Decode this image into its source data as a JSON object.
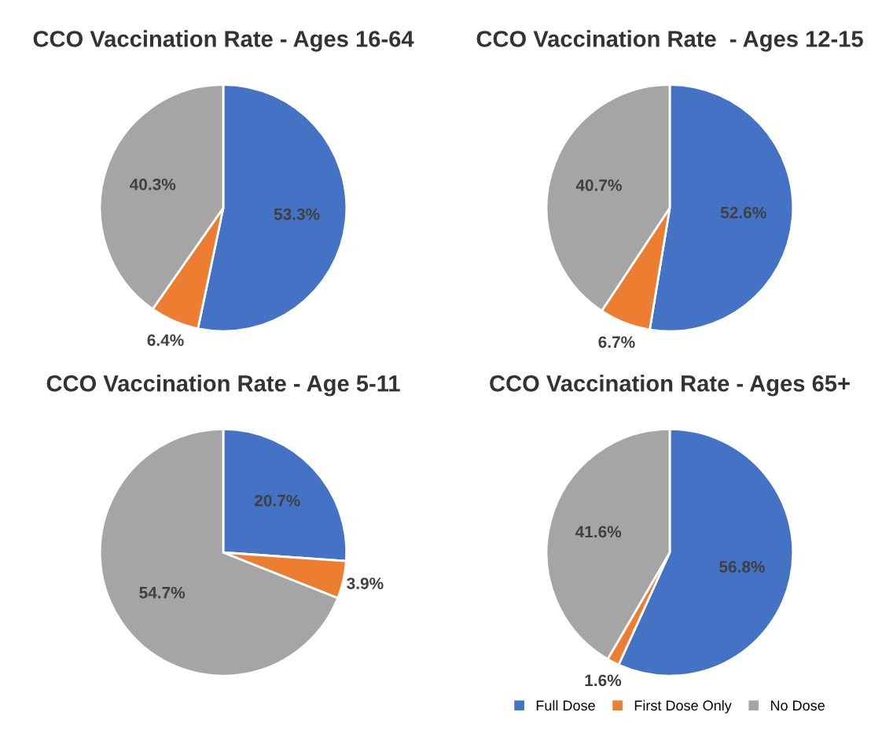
{
  "chart_data": [
    {
      "type": "pie",
      "title": "CCO Vaccination Rate - Ages 16-64",
      "categories": [
        null,
        null,
        null
      ],
      "values": [
        53.3,
        6.4,
        40.3
      ],
      "colors": [
        "#4472c4",
        "#ed7d31",
        "#a5a5a5"
      ],
      "value_labels": [
        "53.3%",
        "6.4%",
        "40.3%"
      ],
      "legend": false
    },
    {
      "type": "pie",
      "title": "CCO Vaccination Rate  - Ages 12-15",
      "categories": [
        null,
        null,
        null
      ],
      "values": [
        52.6,
        6.7,
        40.7
      ],
      "colors": [
        "#4472c4",
        "#ed7d31",
        "#a5a5a5"
      ],
      "value_labels": [
        "52.6%",
        "6.7%",
        "40.7%"
      ],
      "legend": false
    },
    {
      "type": "pie",
      "title": "CCO Vaccination Rate - Age 5-11",
      "categories": [
        null,
        null,
        null
      ],
      "values": [
        20.7,
        3.9,
        54.7
      ],
      "colors": [
        "#4472c4",
        "#ed7d31",
        "#a5a5a5"
      ],
      "value_labels": [
        "20.7%",
        "3.9%",
        "54.7%"
      ],
      "legend": false
    },
    {
      "type": "pie",
      "title": "CCO Vaccination Rate - Ages 65+",
      "categories": [
        "Full Dose",
        "First Dose Only",
        "No Dose"
      ],
      "values": [
        56.8,
        1.6,
        41.6
      ],
      "colors": [
        "#4472c4",
        "#ed7d31",
        "#a5a5a5"
      ],
      "value_labels": [
        "56.8%",
        "1.6%",
        "41.6%"
      ],
      "legend": "bottom"
    }
  ]
}
